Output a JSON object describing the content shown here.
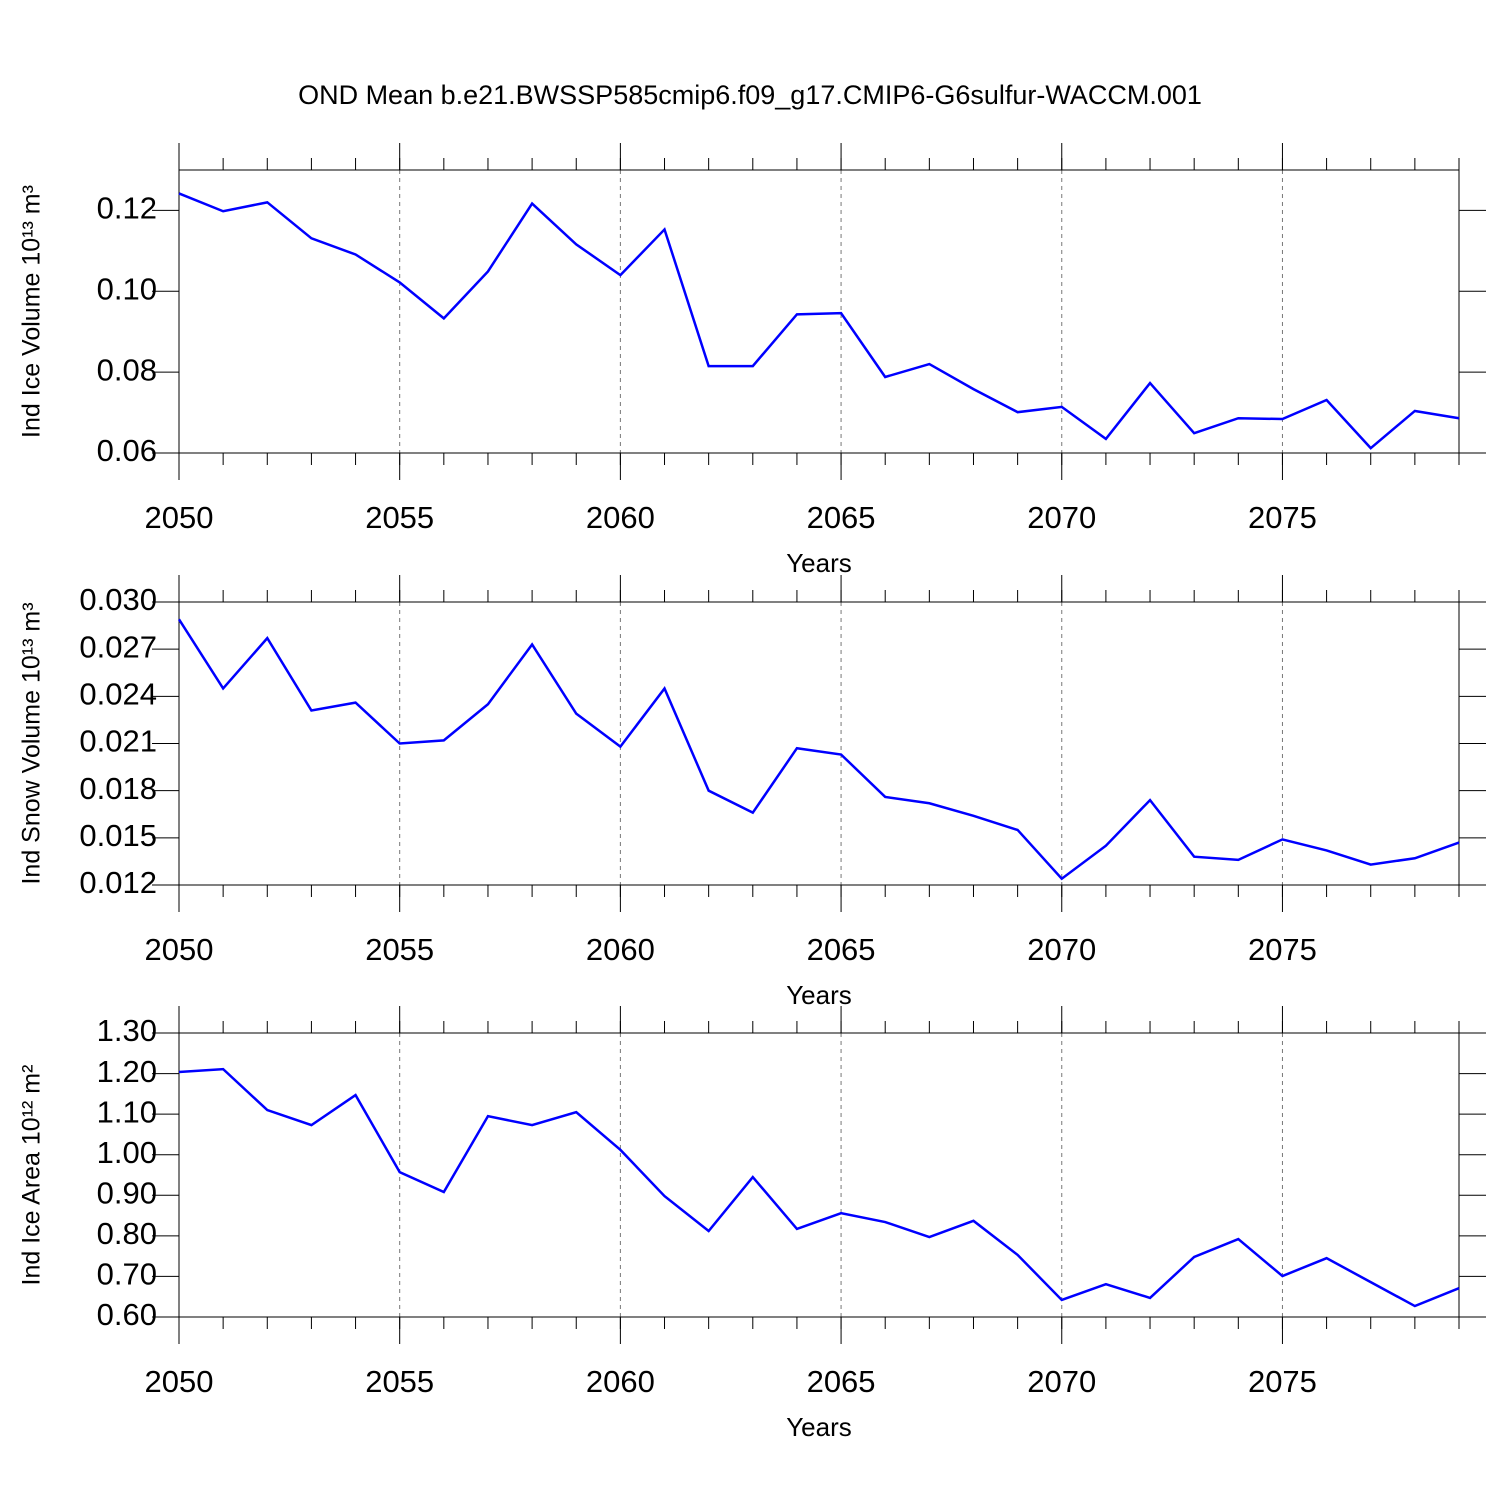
{
  "title": "OND Mean b.e21.BWSSP585cmip6.f09_g17.CMIP6-G6sulfur-WACCM.001",
  "chart_data": [
    {
      "type": "line",
      "ylabel": "Ind Ice Volume 10¹³ m³",
      "xlabel": "Years",
      "color": "#0000ff",
      "xgrid": true,
      "x": [
        2050,
        2051,
        2052,
        2053,
        2054,
        2055,
        2056,
        2057,
        2058,
        2059,
        2060,
        2061,
        2062,
        2063,
        2064,
        2065,
        2066,
        2067,
        2068,
        2069,
        2070,
        2071,
        2072,
        2073,
        2074,
        2075,
        2076,
        2077,
        2078,
        2079
      ],
      "values": [
        0.1242,
        0.1198,
        0.122,
        0.1131,
        0.1091,
        0.1022,
        0.0933,
        0.1049,
        0.1217,
        0.1116,
        0.104,
        0.1153,
        0.0815,
        0.0815,
        0.0943,
        0.0946,
        0.0788,
        0.082,
        0.0758,
        0.0701,
        0.0714,
        0.0635,
        0.0773,
        0.0649,
        0.0686,
        0.0684,
        0.0731,
        0.0612,
        0.0704,
        0.0686
      ],
      "xlim": [
        2050,
        2079
      ],
      "xticks": [
        2050,
        2055,
        2060,
        2065,
        2070,
        2075
      ],
      "ylim": [
        0.06,
        0.13
      ],
      "yticks": [
        0.06,
        0.08,
        {
          "value": 0.1,
          "label": "0.10"
        },
        0.12
      ]
    },
    {
      "type": "line",
      "ylabel": "Ind Snow Volume 10¹³ m³",
      "xlabel": "Years",
      "color": "#0000ff",
      "xgrid": true,
      "x": [
        2050,
        2051,
        2052,
        2053,
        2054,
        2055,
        2056,
        2057,
        2058,
        2059,
        2060,
        2061,
        2062,
        2063,
        2064,
        2065,
        2066,
        2067,
        2068,
        2069,
        2070,
        2071,
        2072,
        2073,
        2074,
        2075,
        2076,
        2077,
        2078,
        2079
      ],
      "values": [
        0.0289,
        0.0245,
        0.0277,
        0.0231,
        0.0236,
        0.021,
        0.0212,
        0.0235,
        0.0273,
        0.0229,
        0.0208,
        0.0245,
        0.018,
        0.0166,
        0.0207,
        0.0203,
        0.0176,
        0.0172,
        0.0164,
        0.0155,
        0.0124,
        0.0145,
        0.0174,
        0.0138,
        0.0136,
        0.0149,
        0.0142,
        0.0133,
        0.0137,
        0.0147
      ],
      "xlim": [
        2050,
        2079
      ],
      "xticks": [
        2050,
        2055,
        2060,
        2065,
        2070,
        2075
      ],
      "ylim": [
        0.012,
        0.03
      ],
      "yticks": [
        0.012,
        0.015,
        0.018,
        0.021,
        0.024,
        0.027,
        {
          "value": 0.03,
          "label": "0.030"
        }
      ]
    },
    {
      "type": "line",
      "ylabel": "Ind Ice Area 10¹² m²",
      "xlabel": "Years",
      "color": "#0000ff",
      "xgrid": true,
      "x": [
        2050,
        2051,
        2052,
        2053,
        2054,
        2055,
        2056,
        2057,
        2058,
        2059,
        2060,
        2061,
        2062,
        2063,
        2064,
        2065,
        2066,
        2067,
        2068,
        2069,
        2070,
        2071,
        2072,
        2073,
        2074,
        2075,
        2076,
        2077,
        2078,
        2079
      ],
      "values": [
        1.204,
        1.211,
        1.11,
        1.073,
        1.147,
        0.957,
        0.908,
        1.095,
        1.073,
        1.105,
        1.012,
        0.898,
        0.812,
        0.945,
        0.817,
        0.856,
        0.834,
        0.797,
        0.837,
        0.753,
        0.642,
        0.681,
        0.647,
        0.748,
        0.792,
        0.701,
        0.745,
        0.686,
        0.627,
        0.671
      ],
      "xlim": [
        2050,
        2079
      ],
      "xticks": [
        2050,
        2055,
        2060,
        2065,
        2070,
        2075
      ],
      "ylim": [
        0.6,
        1.3
      ],
      "yticks": [
        {
          "value": 0.6,
          "label": "0.60"
        },
        {
          "value": 0.7,
          "label": "0.70"
        },
        {
          "value": 0.8,
          "label": "0.80"
        },
        {
          "value": 0.9,
          "label": "0.90"
        },
        {
          "value": 1.0,
          "label": "1.00"
        },
        {
          "value": 1.1,
          "label": "1.10"
        },
        {
          "value": 1.2,
          "label": "1.20"
        },
        {
          "value": 1.3,
          "label": "1.30"
        }
      ]
    }
  ]
}
